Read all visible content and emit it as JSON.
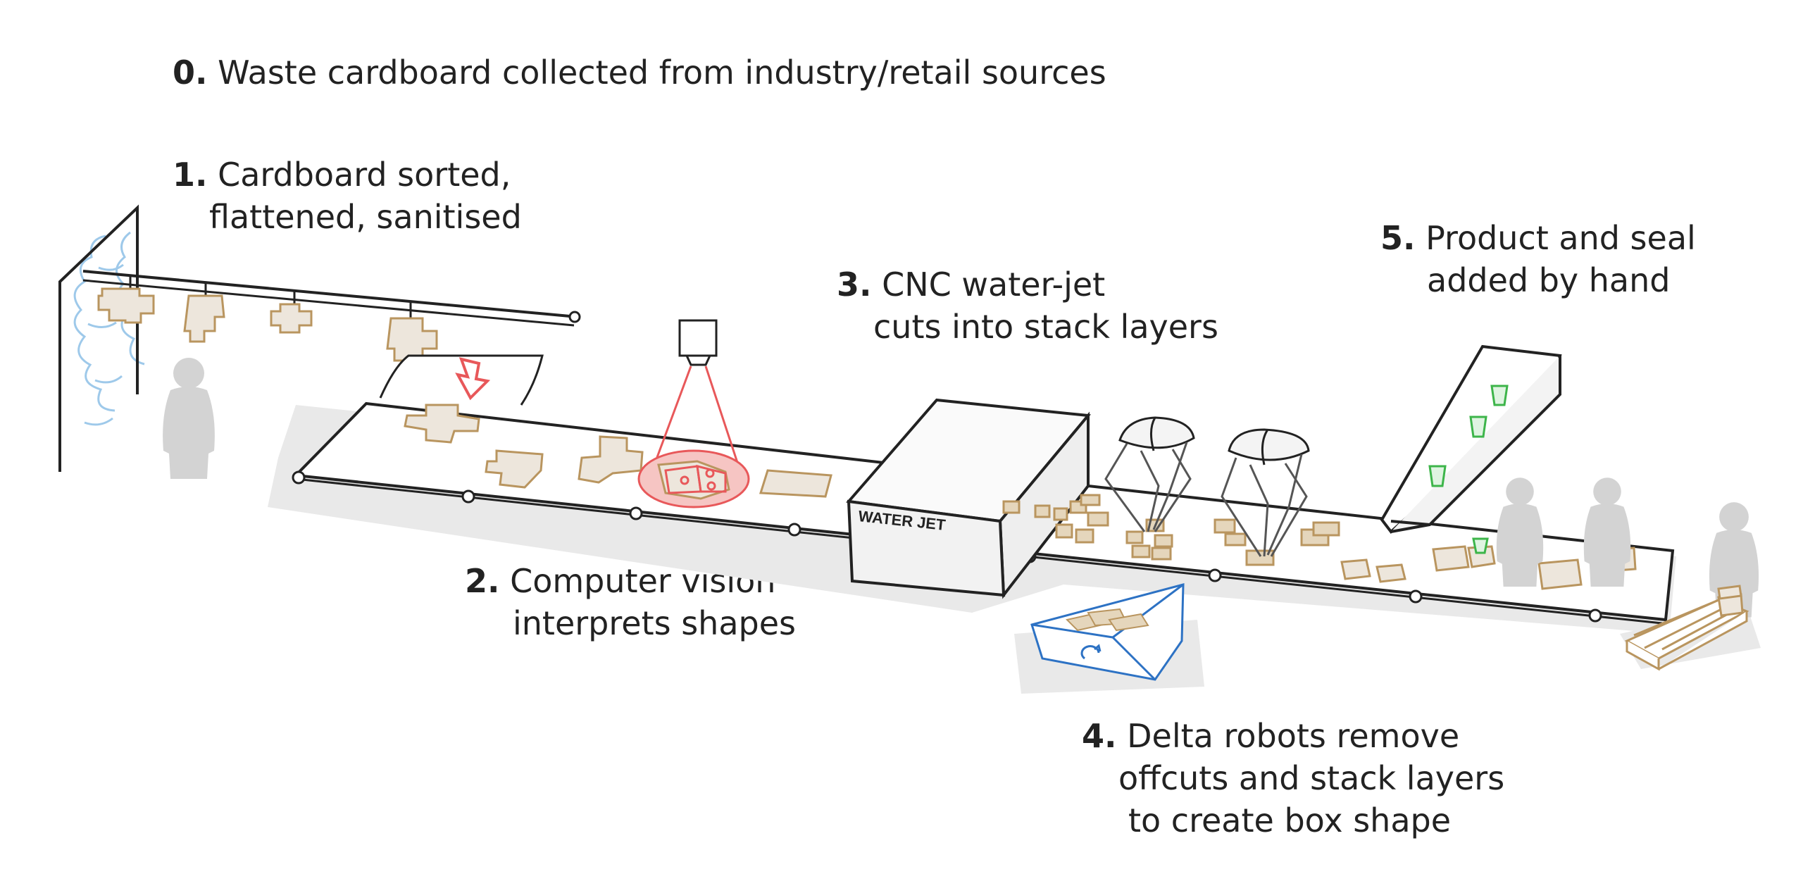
{
  "steps": [
    {
      "number": "0.",
      "lines": [
        "Waste cardboard collected from industry/retail sources"
      ]
    },
    {
      "number": "1.",
      "lines": [
        "Cardboard sorted,",
        "flattened, sanitised"
      ]
    },
    {
      "number": "2.",
      "lines": [
        "Computer vision",
        "interprets shapes"
      ]
    },
    {
      "number": "3.",
      "lines": [
        "CNC water-jet",
        "cuts into stack layers"
      ]
    },
    {
      "number": "4.",
      "lines": [
        "Delta robots remove",
        "offcuts and stack layers",
        "to create box shape"
      ]
    },
    {
      "number": "5.",
      "lines": [
        "Product and seal",
        "added by hand"
      ]
    }
  ],
  "machine": {
    "label": "WATER JET"
  },
  "colors": {
    "outline": "#222222",
    "cardboard": "#b9955f",
    "cardboard_fill": "#ede6dc",
    "vision": "#e8585a",
    "vision_fill": "#f6c5c3",
    "recycle": "#2d72c4",
    "product": "#3db54a",
    "cloud": "#9ec9ea",
    "shadow": "#e9e9e9",
    "person": "#d3d3d3"
  },
  "icons": [
    "camera-icon",
    "arrow-down-icon",
    "recycle-icon",
    "person-icon",
    "delta-robot-icon",
    "pallet-icon"
  ]
}
